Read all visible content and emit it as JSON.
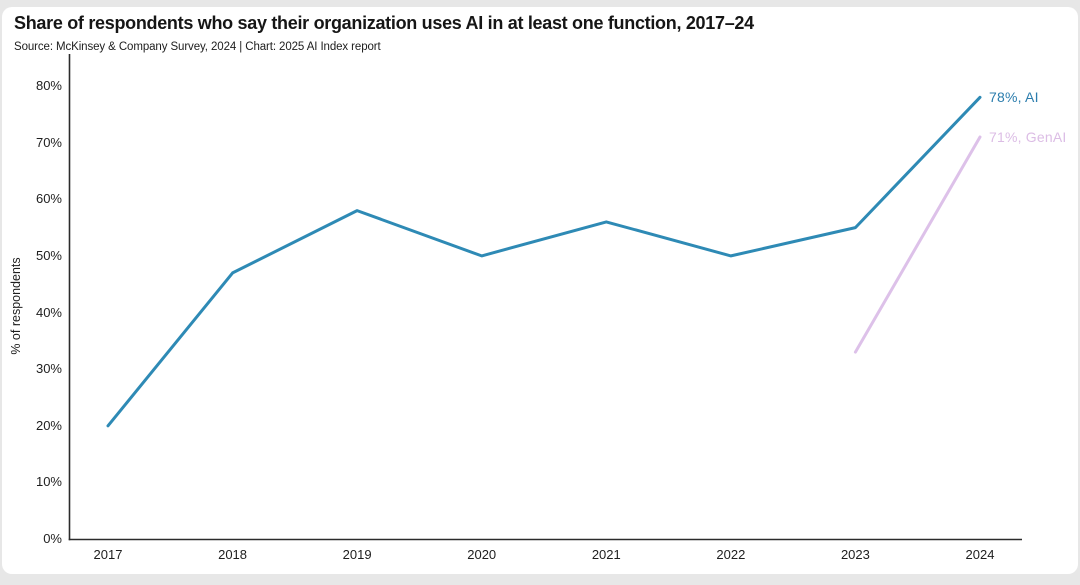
{
  "chart_data": {
    "type": "line",
    "title": "Share of respondents who say their organization uses AI in at least one function, 2017–24",
    "subtitle": "Source: McKinsey & Company Survey, 2024 | Chart: 2025 AI Index report",
    "categories": [
      "2017",
      "2018",
      "2019",
      "2020",
      "2021",
      "2022",
      "2023",
      "2024"
    ],
    "series": [
      {
        "name": "AI",
        "x": [
          2017,
          2018,
          2019,
          2020,
          2021,
          2022,
          2023,
          2024
        ],
        "values": [
          20,
          47,
          58,
          50,
          56,
          50,
          55,
          78
        ],
        "color": "#2e8ab5",
        "end_label": "78%, AI",
        "end_label_color": "#2b7dad"
      },
      {
        "name": "GenAI",
        "x": [
          2023,
          2024
        ],
        "values": [
          33,
          71
        ],
        "color": "#ddc1e9",
        "end_label": "71%, GenAI",
        "end_label_color": "#dcbde5"
      }
    ],
    "xlabel": "",
    "ylabel": "% of respondents",
    "ylim": [
      0,
      80
    ],
    "yticks": [
      0,
      10,
      20,
      30,
      40,
      50,
      60,
      70,
      80
    ],
    "ytick_suffix": "%",
    "grid": false,
    "legend": "end-of-line value labels",
    "axis_color": "#2b2b2b",
    "background_color": "#ffffff",
    "page_background_color": "#e7e7e7"
  }
}
